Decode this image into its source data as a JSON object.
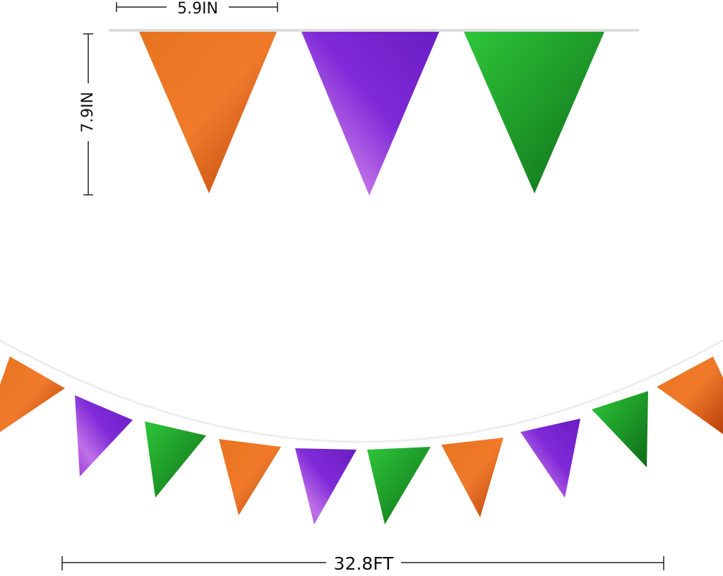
{
  "dimensions": {
    "width": {
      "label": "5.9IN"
    },
    "height": {
      "label": "7.9IN"
    },
    "length": {
      "label": "32.8FT"
    }
  }
}
